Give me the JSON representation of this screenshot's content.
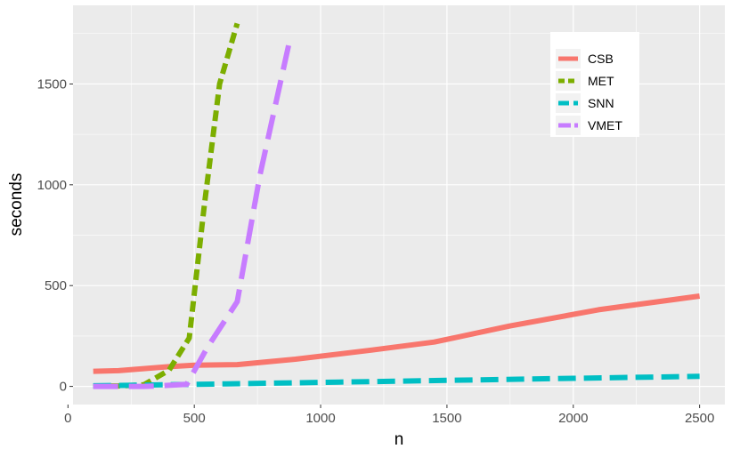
{
  "chart_data": {
    "type": "line",
    "title": "",
    "xlabel": "n",
    "ylabel": "seconds",
    "xlim": [
      20,
      2600
    ],
    "ylim": [
      -90,
      1890
    ],
    "x_ticks": [
      0,
      500,
      1000,
      1500,
      2000,
      2500
    ],
    "x_tick_labels": [
      "0",
      "500",
      "1000",
      "1500",
      "2000",
      "2500"
    ],
    "y_ticks": [
      0,
      500,
      1000,
      1500
    ],
    "y_tick_labels": [
      "0",
      "500",
      "1000",
      "1500"
    ],
    "grid": true,
    "legend_position": "top-right",
    "series": [
      {
        "name": "CSB",
        "color": "#F8766D",
        "dash": "solid",
        "x": [
          100,
          200,
          300,
          400,
          500,
          670,
          900,
          1200,
          1450,
          1750,
          2100,
          2500
        ],
        "y": [
          75,
          78,
          88,
          98,
          105,
          108,
          135,
          180,
          220,
          300,
          380,
          448
        ]
      },
      {
        "name": "MET",
        "color": "#7CAE00",
        "dash": "short",
        "x": [
          100,
          200,
          300,
          400,
          480,
          540,
          600,
          670
        ],
        "y": [
          2,
          2,
          8,
          80,
          240,
          900,
          1500,
          1800
        ]
      },
      {
        "name": "SNN",
        "color": "#00BFC4",
        "dash": "long",
        "x": [
          100,
          500,
          1000,
          1500,
          2000,
          2500
        ],
        "y": [
          3,
          10,
          20,
          30,
          40,
          50
        ]
      },
      {
        "name": "VMET",
        "color": "#C77CFF",
        "dash": "longer",
        "x": [
          100,
          300,
          350,
          470,
          550,
          670,
          760,
          880
        ],
        "y": [
          0,
          0,
          2,
          10,
          190,
          420,
          1050,
          1730
        ]
      }
    ]
  }
}
